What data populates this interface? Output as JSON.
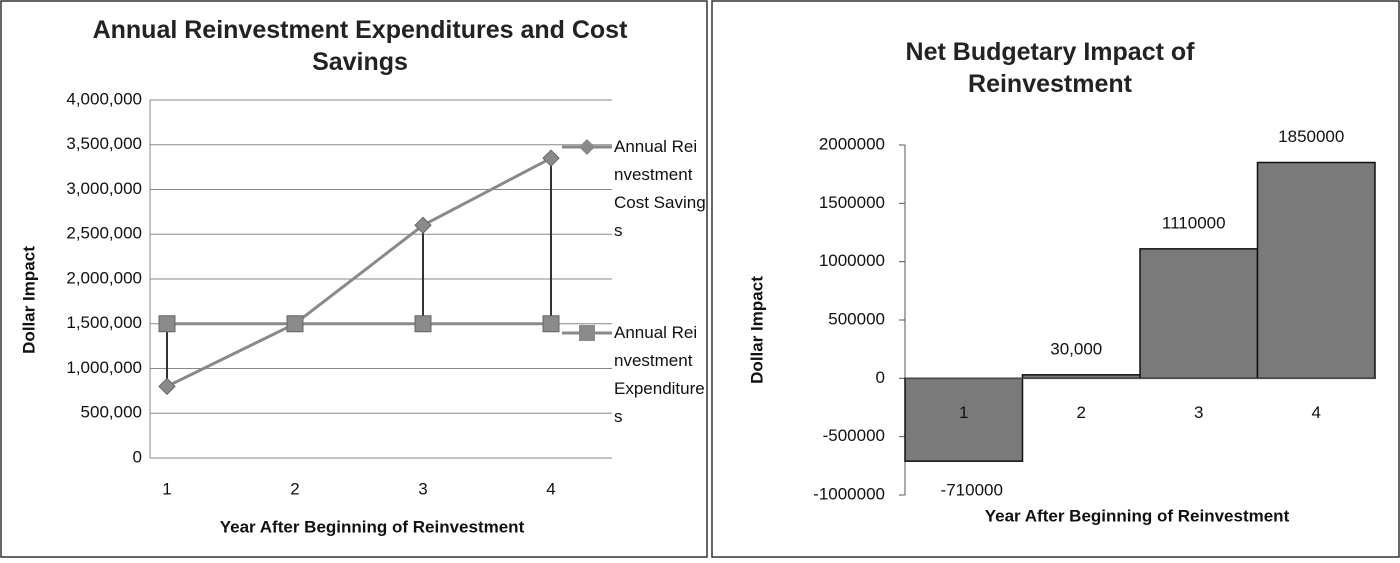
{
  "chart_data": [
    {
      "type": "line",
      "title": "Annual Reinvestment Expenditures and Cost Savings",
      "categories": [
        "1",
        "2",
        "3",
        "4"
      ],
      "series": [
        {
          "name": "Annual Reinvestment Cost Savings",
          "color": "#8a8a8a",
          "marker": "diamond",
          "values": [
            800000,
            1500000,
            2600000,
            3350000
          ]
        },
        {
          "name": "Annual Reinvestment Expenditures",
          "color": "#8a8a8a",
          "marker": "square",
          "values": [
            1500000,
            1500000,
            1500000,
            1500000
          ]
        }
      ],
      "ylim": [
        0,
        4000000
      ],
      "yticks": [
        0,
        {
          "value": 500000,
          "label": "500,000"
        },
        {
          "value": 1000000,
          "label": "1,000,000"
        },
        {
          "value": 1500000,
          "label": "1,500,000"
        },
        {
          "value": 2000000,
          "label": "2,000,000"
        },
        {
          "value": 2500000,
          "label": "2,500,000"
        },
        {
          "value": 3000000,
          "label": "3,000,000"
        },
        {
          "value": 3500000,
          "label": "3,500,000"
        },
        {
          "value": 4000000,
          "label": "4,000,000"
        }
      ],
      "xlabel": "Year After Beginning of Reinvestment",
      "ylabel": "Dollar Impact",
      "grid": true,
      "legend": "right",
      "hilo_lines": true
    },
    {
      "type": "bar",
      "title": "Net Budgetary Impact of Reinvestment",
      "categories": [
        "1",
        "2",
        "3",
        "4"
      ],
      "values": [
        -710000,
        30000,
        1110000,
        1850000
      ],
      "value_labels": [
        "-710000",
        "30,000",
        "1110000",
        "1850000"
      ],
      "color": "#7a7a7a",
      "ylim": [
        -1000000,
        2000000
      ],
      "yticks": [
        -1000000,
        -500000,
        0,
        500000,
        1000000,
        1500000,
        2000000
      ],
      "xlabel": "Year After Beginning of Reinvestment",
      "ylabel": "Dollar Impact",
      "grid": false
    }
  ]
}
